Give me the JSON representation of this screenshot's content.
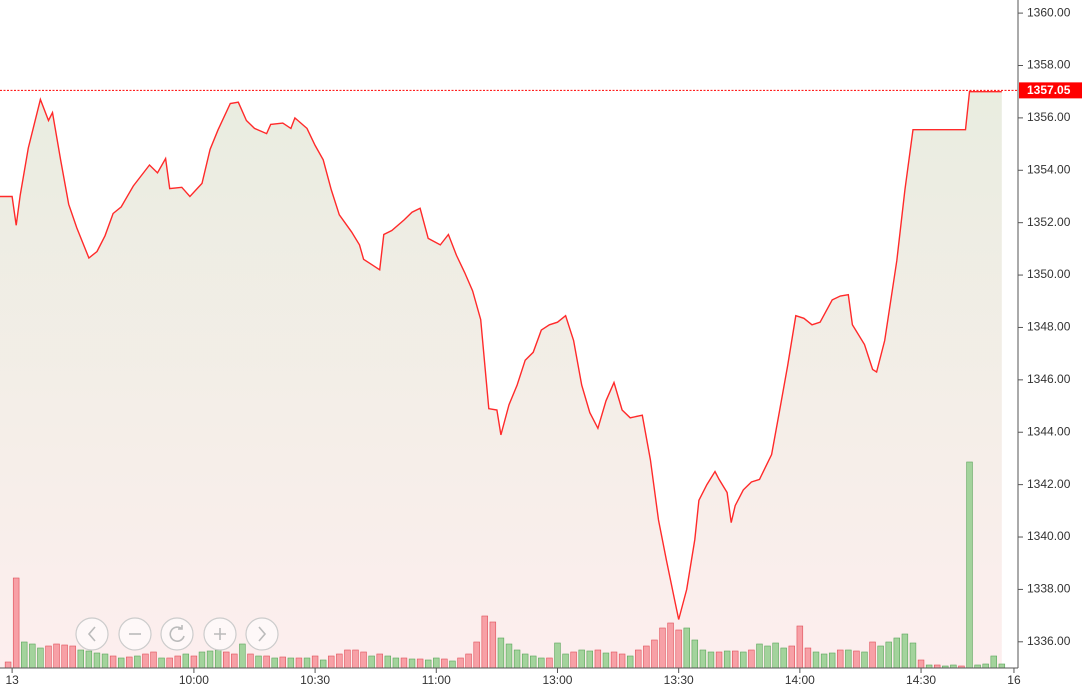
{
  "chart_data": {
    "type": "line",
    "color": "#ff2a2a",
    "x": [
      -18,
      -15,
      -14,
      -13,
      -11,
      -8,
      -6,
      -5,
      -3,
      -1,
      1,
      4,
      6,
      8,
      10,
      12,
      15,
      19,
      21,
      23,
      24,
      27,
      29,
      32,
      34,
      36,
      39,
      41,
      43,
      45,
      48,
      49,
      52,
      54,
      55,
      58,
      60,
      62,
      64,
      66,
      69,
      71,
      72,
      74,
      76,
      77,
      79,
      82,
      84,
      86,
      88,
      91,
      93,
      95,
      97,
      99,
      101,
      103,
      105,
      106,
      108,
      110,
      112,
      114,
      116,
      118,
      120,
      122,
      124,
      126,
      128,
      130,
      132,
      134,
      136,
      138,
      141,
      143,
      145,
      147,
      149,
      150,
      152,
      154,
      155,
      157,
      159,
      160,
      162,
      163,
      164,
      166,
      168,
      170,
      173,
      175,
      177,
      179,
      181,
      183,
      185,
      188,
      190,
      192,
      193,
      196,
      198,
      199,
      201,
      204,
      206,
      208,
      221,
      222,
      230
    ],
    "values": [
      1353.0,
      1353.0,
      1351.9,
      1353.05,
      1354.85,
      1356.7,
      1355.9,
      1356.2,
      1354.4,
      1352.7,
      1351.8,
      1350.65,
      1350.9,
      1351.5,
      1352.35,
      1352.6,
      1353.4,
      1354.2,
      1353.9,
      1354.45,
      1353.3,
      1353.35,
      1353.0,
      1353.5,
      1354.8,
      1355.55,
      1356.55,
      1356.6,
      1355.9,
      1355.6,
      1355.4,
      1355.75,
      1355.8,
      1355.6,
      1356.0,
      1355.6,
      1354.95,
      1354.4,
      1353.25,
      1352.3,
      1351.65,
      1351.15,
      1350.6,
      1350.4,
      1350.2,
      1351.55,
      1351.7,
      1352.1,
      1352.4,
      1352.55,
      1351.4,
      1351.15,
      1351.55,
      1350.75,
      1350.1,
      1349.4,
      1348.3,
      1344.9,
      1344.85,
      1343.9,
      1345.05,
      1345.8,
      1346.75,
      1347.05,
      1347.9,
      1348.1,
      1348.2,
      1348.45,
      1347.5,
      1345.8,
      1344.75,
      1344.15,
      1345.2,
      1345.9,
      1344.85,
      1344.55,
      1344.65,
      1342.95,
      1340.65,
      1339.1,
      1337.6,
      1336.85,
      1338.0,
      1339.9,
      1341.4,
      1342.0,
      1342.5,
      1342.2,
      1341.7,
      1340.55,
      1341.2,
      1341.8,
      1342.1,
      1342.2,
      1343.15,
      1344.85,
      1346.55,
      1348.45,
      1348.35,
      1348.1,
      1348.2,
      1349.05,
      1349.2,
      1349.25,
      1348.1,
      1347.35,
      1346.4,
      1346.3,
      1347.5,
      1350.55,
      1353.25,
      1355.55,
      1355.55,
      1357.0,
      1357.0
    ],
    "xlim": [
      -18,
      234
    ],
    "xticks": [
      {
        "value": -15,
        "label": "13"
      },
      {
        "value": 30,
        "label": "10:00"
      },
      {
        "value": 60,
        "label": "10:30"
      },
      {
        "value": 90,
        "label": "11:00"
      },
      {
        "value": 120,
        "label": "13:00"
      },
      {
        "value": 150,
        "label": "13:30"
      },
      {
        "value": 180,
        "label": "14:00"
      },
      {
        "value": 210,
        "label": "14:30"
      },
      {
        "value": 233,
        "label": "16"
      }
    ],
    "ylim": [
      1335,
      1360.5
    ],
    "yticks": [
      {
        "value": 1336,
        "label": "1336.00"
      },
      {
        "value": 1338,
        "label": "1338.00"
      },
      {
        "value": 1340,
        "label": "1340.00"
      },
      {
        "value": 1342,
        "label": "1342.00"
      },
      {
        "value": 1344,
        "label": "1344.00"
      },
      {
        "value": 1346,
        "label": "1346.00"
      },
      {
        "value": 1348,
        "label": "1348.00"
      },
      {
        "value": 1350,
        "label": "1350.00"
      },
      {
        "value": 1352,
        "label": "1352.00"
      },
      {
        "value": 1354,
        "label": "1354.00"
      },
      {
        "value": 1356,
        "label": "1356.00"
      },
      {
        "value": 1358,
        "label": "1358.00"
      },
      {
        "value": 1360,
        "label": "1360.00"
      }
    ],
    "last_price": 1357.05,
    "last_price_color": "#ff0000",
    "area_top_color": "#e9ede0",
    "area_bottom_color": "#fdeeee",
    "volume": {
      "ylim": [
        0,
        668
      ],
      "up": {
        "color": "#a3d39c",
        "stroke": "#5aa55a",
        "x": [
          -12,
          -10,
          -8,
          2,
          4,
          6,
          8,
          12,
          16,
          22,
          28,
          32,
          34,
          36,
          42,
          46,
          50,
          54,
          58,
          62,
          74,
          78,
          80,
          84,
          88,
          90,
          94,
          106,
          108,
          110,
          112,
          114,
          116,
          120,
          122,
          126,
          128,
          132,
          138,
          152,
          154,
          156,
          158,
          162,
          166,
          170,
          172,
          174,
          176,
          184,
          186,
          188,
          192,
          196,
          200,
          202,
          204,
          206,
          208,
          212,
          216,
          218,
          222,
          224,
          226,
          228,
          230
        ],
        "values": [
          26,
          24,
          20,
          18,
          17,
          15,
          14,
          10,
          12,
          10,
          14,
          16,
          17,
          18,
          24,
          12,
          10,
          10,
          10,
          8,
          12,
          12,
          10,
          9,
          8,
          10,
          7,
          30,
          24,
          18,
          14,
          12,
          10,
          25,
          14,
          18,
          17,
          15,
          12,
          40,
          28,
          18,
          16,
          17,
          16,
          24,
          22,
          25,
          20,
          16,
          14,
          15,
          18,
          16,
          22,
          26,
          30,
          34,
          25,
          3,
          2,
          3,
          206,
          3,
          4,
          12,
          4
        ]
      },
      "down": {
        "color": "#f7a0a6",
        "stroke": "#e0505a",
        "x": [
          -16,
          -14,
          -6,
          -4,
          -2,
          0,
          10,
          14,
          18,
          20,
          24,
          26,
          30,
          38,
          40,
          44,
          48,
          52,
          56,
          60,
          64,
          66,
          68,
          70,
          72,
          76,
          82,
          86,
          92,
          96,
          98,
          100,
          102,
          104,
          118,
          124,
          130,
          134,
          136,
          140,
          142,
          144,
          146,
          148,
          150,
          160,
          164,
          168,
          178,
          180,
          182,
          190,
          194,
          198,
          210,
          214,
          220
        ],
        "values": [
          6,
          90,
          22,
          24,
          23,
          22,
          12,
          11,
          14,
          16,
          10,
          12,
          12,
          16,
          14,
          14,
          12,
          11,
          10,
          12,
          12,
          14,
          18,
          18,
          16,
          14,
          10,
          9,
          9,
          10,
          14,
          26,
          52,
          46,
          10,
          16,
          18,
          16,
          14,
          18,
          22,
          28,
          40,
          45,
          38,
          16,
          17,
          18,
          22,
          42,
          20,
          18,
          17,
          26,
          8,
          3,
          2
        ]
      }
    }
  }
}
